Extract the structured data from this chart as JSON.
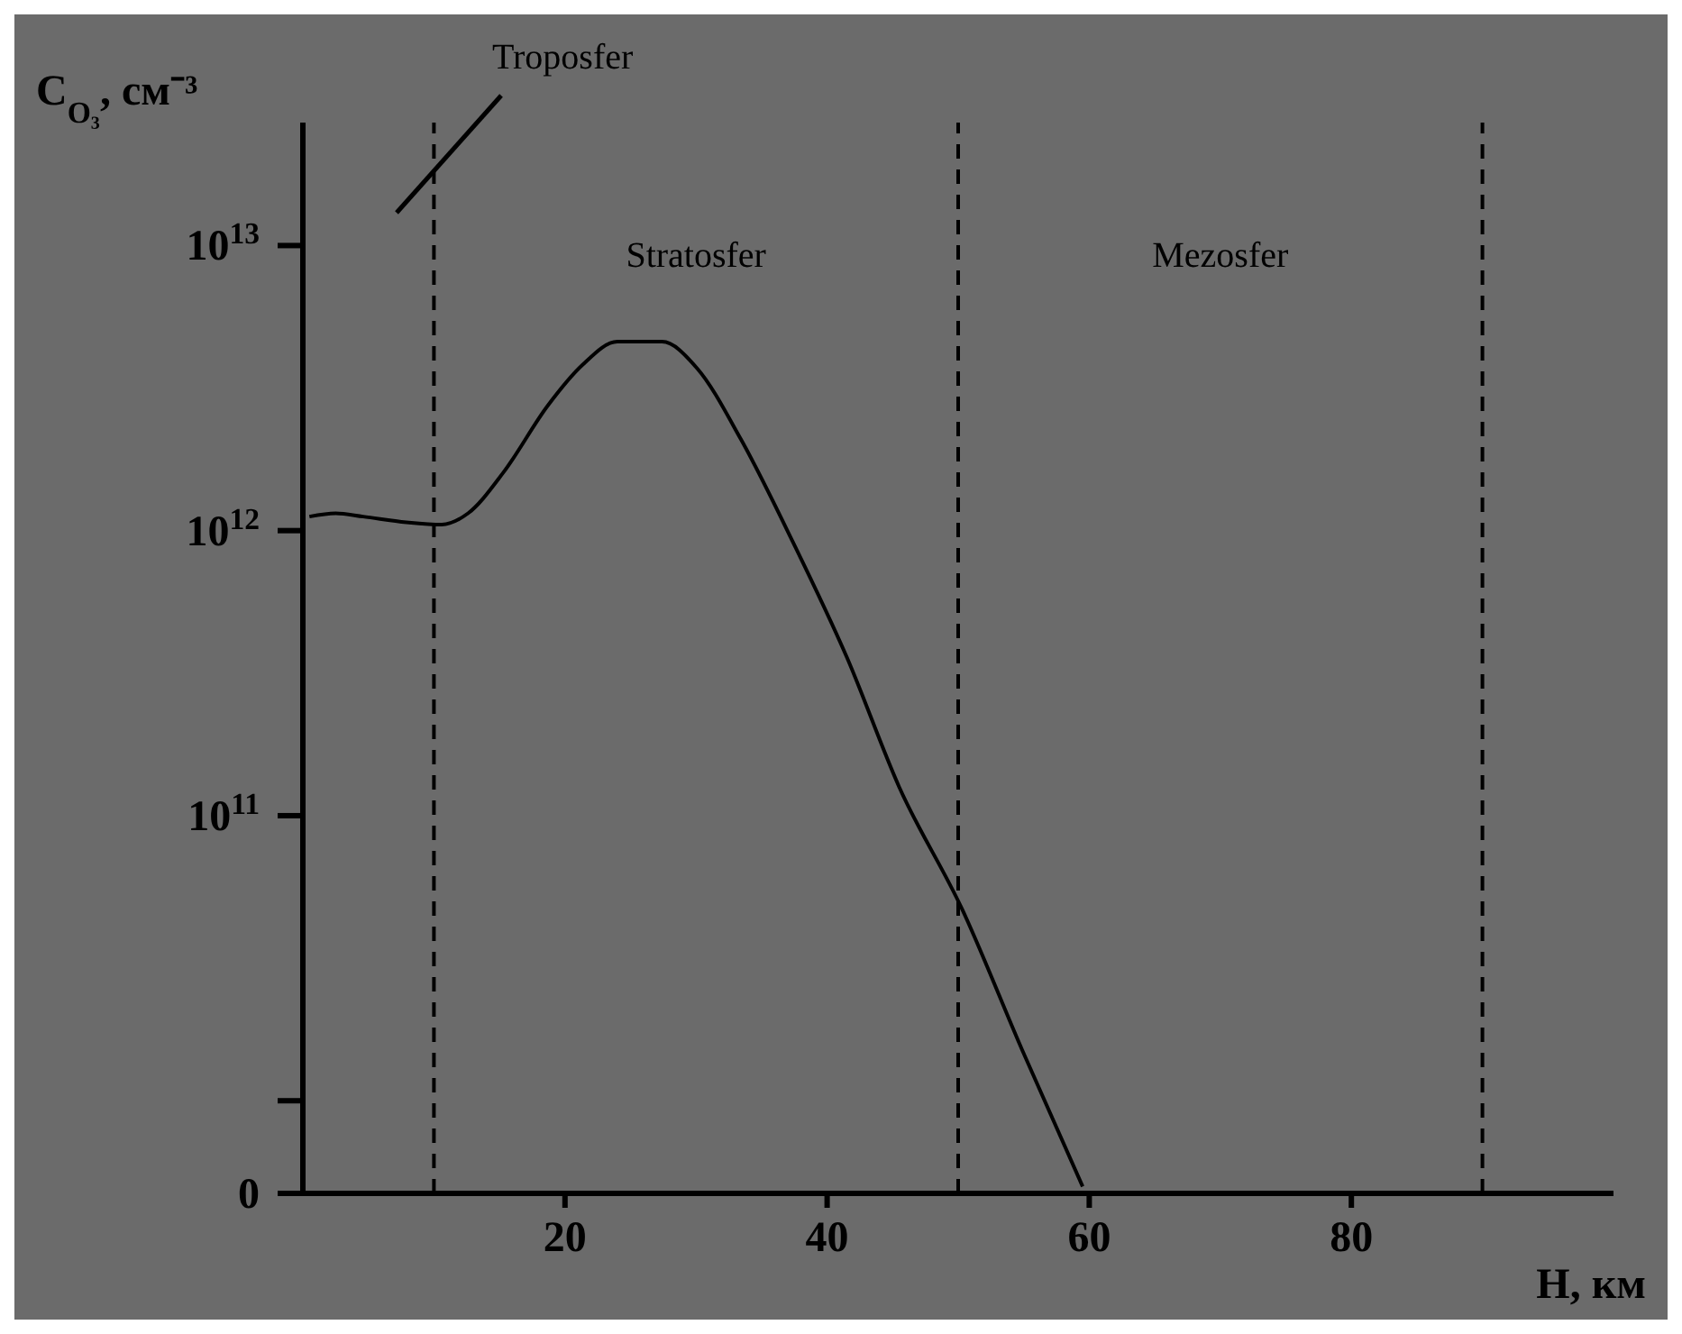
{
  "chart_data": {
    "type": "line",
    "xlabel": "H, км",
    "ylabel": "C$_{O₃}$, см⁻³",
    "x": [
      0.5,
      2.5,
      4.6,
      7.9,
      10.6,
      12.6,
      15.3,
      18.7,
      21.3,
      24,
      27.4,
      30.1,
      33.4,
      37.4,
      41.5,
      45.5,
      50.3,
      54.9,
      59.5
    ],
    "series": [
      {
        "color": "#000000",
        "values": [
          1120000000000.0,
          1150000000000.0,
          1120000000000.0,
          1070000000000.0,
          1050000000000.0,
          1150000000000.0,
          1600000000000.0,
          2750000000000.0,
          3800000000000.0,
          4600000000000.0,
          4600000000000.0,
          3700000000000.0,
          2100000000000.0,
          910000000000.0,
          360000000000.0,
          126000000000.0,
          47000000000.0,
          15000000000.0,
          5000000000.0
        ]
      }
    ],
    "log": "y",
    "xlim": [
      0,
      100
    ],
    "xticks": [
      20,
      40,
      60,
      80
    ],
    "ylim": [
      0,
      27000000000000.0
    ],
    "yticks": [
      0,
      {
        "value": 10000000000.0,
        "label": null
      },
      {
        "value": 100000000000.0,
        "label": "10$^{11}$"
      },
      {
        "value": 1000000000000.0,
        "label": "10$^{12}$"
      },
      {
        "value": 10000000000000.0,
        "label": "10$^{13}$"
      }
    ],
    "ref_lines": [
      {
        "axis": "x",
        "value": 10,
        "color": "#000000",
        "line_style": "dashed"
      },
      {
        "axis": "x",
        "value": 50,
        "color": "#000000",
        "line_style": "dashed"
      },
      {
        "axis": "x",
        "value": 90,
        "color": "#000000",
        "line_style": "dashed"
      }
    ],
    "annotations": [
      "Troposfer",
      "Stratosfer",
      "Mezosfer"
    ],
    "grid": false,
    "legend": false,
    "marker": "none",
    "line_style": "solid"
  }
}
